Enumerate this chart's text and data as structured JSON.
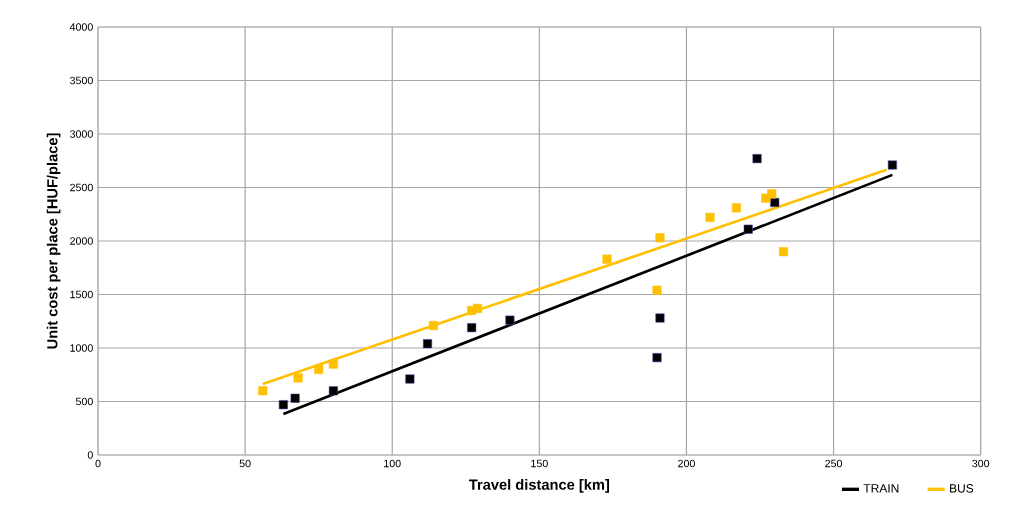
{
  "chart_data": {
    "type": "scatter",
    "xlabel": "Travel distance [km]",
    "ylabel": "Unit cost per place [HUF/place]",
    "xlim": [
      0,
      300
    ],
    "ylim": [
      0,
      4000
    ],
    "xticks": [
      0,
      50,
      100,
      150,
      200,
      250,
      300
    ],
    "yticks": [
      0,
      500,
      1000,
      1500,
      2000,
      2500,
      3000,
      3500,
      4000
    ],
    "grid": true,
    "legend": "bottom right",
    "marker": "square",
    "series": [
      {
        "color": "#000000",
        "x": [
          63,
          67,
          80,
          106,
          112,
          127,
          140,
          190,
          191,
          221,
          224,
          230,
          270
        ],
        "values": [
          470,
          530,
          600,
          710,
          1040,
          1190,
          1260,
          910,
          1280,
          2110,
          2770,
          2360,
          2710
        ]
      },
      {
        "color": "#ffc000",
        "x": [
          56,
          68,
          75,
          80,
          114,
          127,
          129,
          173,
          190,
          191,
          208,
          217,
          227,
          229,
          233
        ],
        "values": [
          600,
          720,
          800,
          850,
          1210,
          1350,
          1370,
          1830,
          1540,
          2030,
          2220,
          2310,
          2400,
          2440,
          1900
        ]
      },
      {
        "type": "line",
        "name": "TRAIN",
        "color": "#000000",
        "marker": "none",
        "x": [
          63,
          270
        ],
        "values": [
          383,
          2618
        ]
      },
      {
        "type": "line",
        "name": "BUS",
        "color": "#ffc000",
        "marker": "none",
        "x": [
          56,
          268
        ],
        "values": [
          664,
          2665
        ]
      }
    ]
  }
}
